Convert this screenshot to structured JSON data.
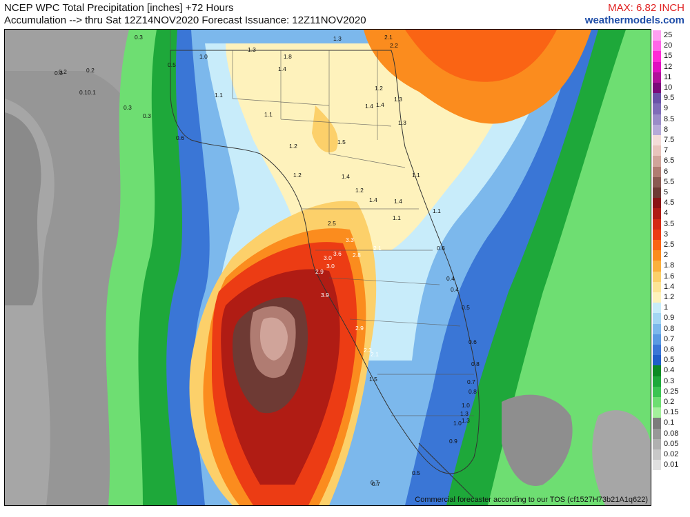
{
  "header": {
    "line1": "NCEP WPC Total Precipitation [inches] +72 Hours",
    "line2": "Accumulation --> thru Sat 12Z14NOV2020   Forecast Issuance: 12Z11NOV2020",
    "max": "MAX: 6.82 INCH",
    "site": "weathermodels.com"
  },
  "credit": "Commercial forecaster according to our TOS (cf1527H73b21A1q622)",
  "legend": [
    {
      "label": "25",
      "color": "#ff9ff0"
    },
    {
      "label": "20",
      "color": "#ff66e8"
    },
    {
      "label": "15",
      "color": "#ff2ad6"
    },
    {
      "label": "12",
      "color": "#e00fc0"
    },
    {
      "label": "11",
      "color": "#b0109a"
    },
    {
      "label": "10",
      "color": "#7a0a7a"
    },
    {
      "label": "9.5",
      "color": "#6a52a8"
    },
    {
      "label": "9",
      "color": "#7f6cb8"
    },
    {
      "label": "8.5",
      "color": "#9a8cc8"
    },
    {
      "label": "8",
      "color": "#b6aad8"
    },
    {
      "label": "7.5",
      "color": "#f4dcd8"
    },
    {
      "label": "7",
      "color": "#e8c4bc"
    },
    {
      "label": "6.5",
      "color": "#d0a49a"
    },
    {
      "label": "6",
      "color": "#b07c72"
    },
    {
      "label": "5.5",
      "color": "#8a5a52"
    },
    {
      "label": "5",
      "color": "#6e3a34"
    },
    {
      "label": "4.5",
      "color": "#8a1414"
    },
    {
      "label": "4",
      "color": "#b01c14"
    },
    {
      "label": "3.5",
      "color": "#d42a14"
    },
    {
      "label": "3",
      "color": "#ec3c14"
    },
    {
      "label": "2.5",
      "color": "#fa6414"
    },
    {
      "label": "2",
      "color": "#fb8c1e"
    },
    {
      "label": "1.8",
      "color": "#fbb03c"
    },
    {
      "label": "1.6",
      "color": "#fcd06a"
    },
    {
      "label": "1.4",
      "color": "#fde496"
    },
    {
      "label": "1.2",
      "color": "#fef2bc"
    },
    {
      "label": "1",
      "color": "#c8ecfa"
    },
    {
      "label": "0.9",
      "color": "#a4d6f4"
    },
    {
      "label": "0.8",
      "color": "#7cb8ec"
    },
    {
      "label": "0.7",
      "color": "#5a9ae2"
    },
    {
      "label": "0.6",
      "color": "#3a76d6"
    },
    {
      "label": "0.5",
      "color": "#1f5ec8"
    },
    {
      "label": "0.4",
      "color": "#0c8a24"
    },
    {
      "label": "0.3",
      "color": "#1ea83a"
    },
    {
      "label": "0.25",
      "color": "#3cc452"
    },
    {
      "label": "0.2",
      "color": "#6ede72"
    },
    {
      "label": "0.15",
      "color": "#a4f09c"
    },
    {
      "label": "0.1",
      "color": "#7c7c7c"
    },
    {
      "label": "0.08",
      "color": "#989898"
    },
    {
      "label": "0.05",
      "color": "#b0b0b0"
    },
    {
      "label": "0.02",
      "color": "#c8c8c8"
    },
    {
      "label": "0.01",
      "color": "#e0e0e0"
    }
  ],
  "map_labels": [
    {
      "t": "0.3"
    },
    {
      "t": "0.2"
    },
    {
      "t": "0.3"
    },
    {
      "t": "0.2"
    },
    {
      "t": "0.1"
    },
    {
      "t": "0.1"
    },
    {
      "t": "0.5"
    },
    {
      "t": "0.3"
    },
    {
      "t": "0.3"
    },
    {
      "t": "0.6"
    },
    {
      "t": "1.0"
    },
    {
      "t": "1.3"
    },
    {
      "t": "1.8"
    },
    {
      "t": "1.4"
    },
    {
      "t": "1.3"
    },
    {
      "t": "2.1"
    },
    {
      "t": "2.2"
    },
    {
      "t": "1.1"
    },
    {
      "t": "1.1"
    },
    {
      "t": "1.2"
    },
    {
      "t": "1.4"
    },
    {
      "t": "1.5"
    },
    {
      "t": "1.2"
    },
    {
      "t": "1.4"
    },
    {
      "t": "1.2"
    },
    {
      "t": "1.4"
    },
    {
      "t": "1.1"
    },
    {
      "t": "1.1"
    },
    {
      "t": "1.2"
    },
    {
      "t": "1.4"
    },
    {
      "t": "1.3"
    },
    {
      "t": "1.3"
    },
    {
      "t": "1.4"
    },
    {
      "t": "1.1"
    },
    {
      "t": "2.5"
    },
    {
      "t": "3.3"
    },
    {
      "t": "3.6"
    },
    {
      "t": "2.8"
    },
    {
      "t": "2.1"
    },
    {
      "t": "3.0"
    },
    {
      "t": "3.0"
    },
    {
      "t": "2.9"
    },
    {
      "t": "3.9"
    },
    {
      "t": "2.9"
    },
    {
      "t": "2.3"
    },
    {
      "t": "2.1"
    },
    {
      "t": "1.5"
    },
    {
      "t": "0.7"
    },
    {
      "t": "0.6"
    },
    {
      "t": "0.4"
    },
    {
      "t": "0.4"
    },
    {
      "t": "0.5"
    },
    {
      "t": "0.6"
    },
    {
      "t": "0.8"
    },
    {
      "t": "0.7"
    },
    {
      "t": "0.8"
    },
    {
      "t": "1.0"
    },
    {
      "t": "1.3"
    },
    {
      "t": "1.3"
    },
    {
      "t": "0.9"
    },
    {
      "t": "1.0"
    },
    {
      "t": "0.5"
    },
    {
      "t": "0.7"
    }
  ]
}
